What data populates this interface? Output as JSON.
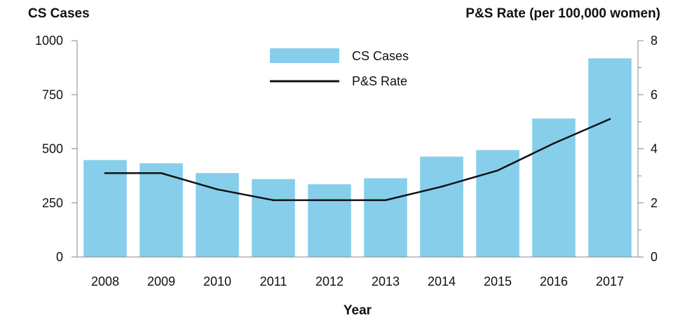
{
  "chart_data": {
    "type": "bar",
    "categories": [
      "2008",
      "2009",
      "2010",
      "2011",
      "2012",
      "2013",
      "2014",
      "2015",
      "2016",
      "2017"
    ],
    "series": [
      {
        "name": "CS Cases",
        "type": "bar",
        "axis": "left",
        "color": "#87ceeb",
        "values": [
          448,
          433,
          388,
          360,
          336,
          364,
          464,
          494,
          640,
          918
        ]
      },
      {
        "name": "P&S Rate",
        "type": "line",
        "axis": "right",
        "color": "#111111",
        "values": [
          3.1,
          3.1,
          2.5,
          2.1,
          2.1,
          2.1,
          2.6,
          3.2,
          4.2,
          5.1
        ]
      }
    ],
    "left_axis": {
      "label": "CS Cases",
      "range": [
        0,
        1000
      ],
      "ticks": [
        0,
        250,
        500,
        750,
        1000
      ]
    },
    "right_axis": {
      "label": "P&S Rate (per 100,000 women)",
      "range": [
        0,
        8
      ],
      "ticks": [
        0,
        2,
        4,
        6,
        8
      ]
    },
    "xlabel": "Year",
    "legend": {
      "position": "top-center",
      "items": [
        "CS Cases",
        "P&S Rate"
      ]
    },
    "grid": false
  }
}
